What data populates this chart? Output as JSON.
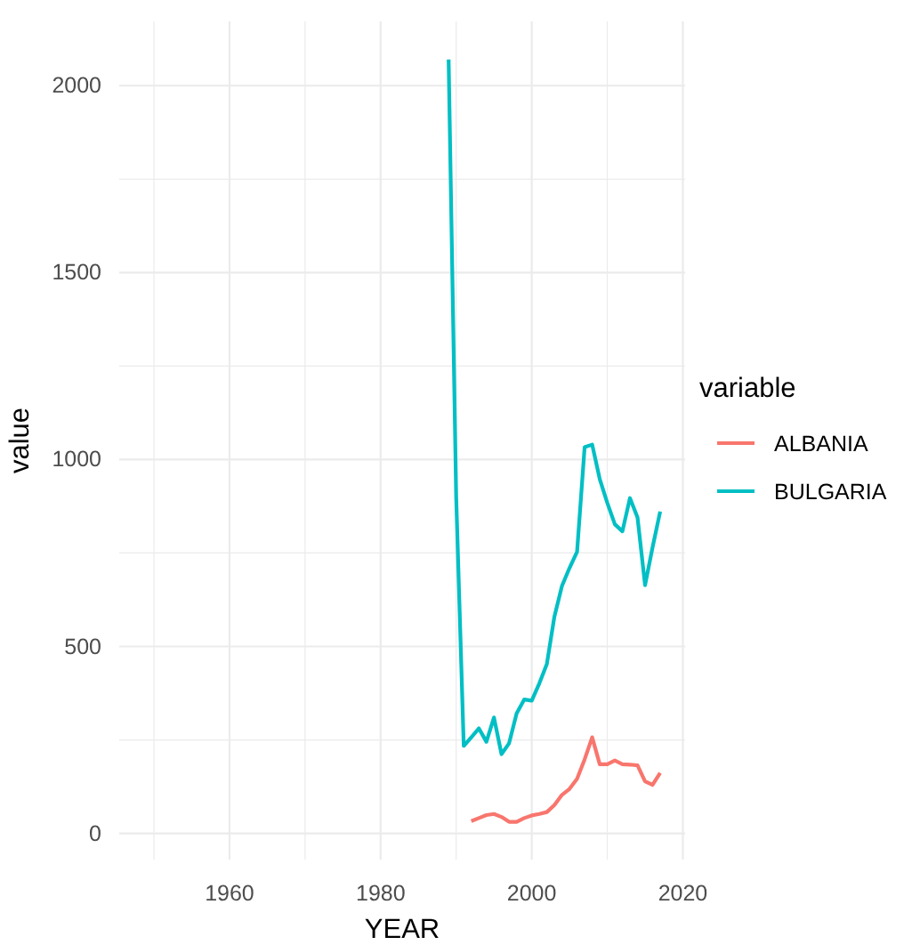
{
  "chart_data": {
    "type": "line",
    "xlabel": "YEAR",
    "ylabel": "value",
    "legend_title": "variable",
    "legend": "right",
    "grid": true,
    "xlim": [
      1945.4,
      2020.3
    ],
    "xticks": [
      {
        "value": 1950,
        "label": null
      },
      1960,
      {
        "value": 1970,
        "label": null
      },
      1980,
      {
        "value": 1990,
        "label": null
      },
      2000,
      {
        "value": 2010,
        "label": null
      },
      2020
    ],
    "ylim": [
      -70,
      2172
    ],
    "yticks": [
      0,
      {
        "value": 250,
        "label": null
      },
      500,
      {
        "value": 750,
        "label": null
      },
      1000,
      {
        "value": 1250,
        "label": null
      },
      1500,
      {
        "value": 1750,
        "label": null
      },
      2000
    ],
    "series": [
      {
        "name": "ALBANIA",
        "color": "#f8766d",
        "x": [
          1992,
          1993,
          1994,
          1995,
          1996,
          1997,
          1998,
          1999,
          2000,
          2001,
          2002,
          2003,
          2004,
          2005,
          2006,
          2007,
          2008,
          2009,
          2010,
          2011,
          2012,
          2013,
          2014,
          2015,
          2016,
          2017
        ],
        "values": [
          33,
          41,
          49,
          52,
          44,
          31,
          31,
          41,
          48,
          52,
          57,
          76,
          103,
          119,
          146,
          198,
          257,
          185,
          185,
          195,
          185,
          184,
          182,
          139,
          130,
          162
        ]
      },
      {
        "name": "BULGARIA",
        "color": "#00bfc4",
        "x": [
          1989,
          1990,
          1991,
          1992,
          1993,
          1994,
          1995,
          1996,
          1997,
          1998,
          1999,
          2000,
          2001,
          2002,
          2003,
          2004,
          2005,
          2006,
          2007,
          2008,
          2009,
          2010,
          2011,
          2012,
          2013,
          2014,
          2015,
          2016,
          2017
        ],
        "values": [
          2070,
          900,
          234,
          257,
          281,
          245,
          310,
          212,
          241,
          321,
          358,
          355,
          401,
          453,
          580,
          662,
          710,
          753,
          1033,
          1040,
          948,
          884,
          827,
          808,
          897,
          845,
          664,
          766,
          861
        ]
      }
    ]
  }
}
